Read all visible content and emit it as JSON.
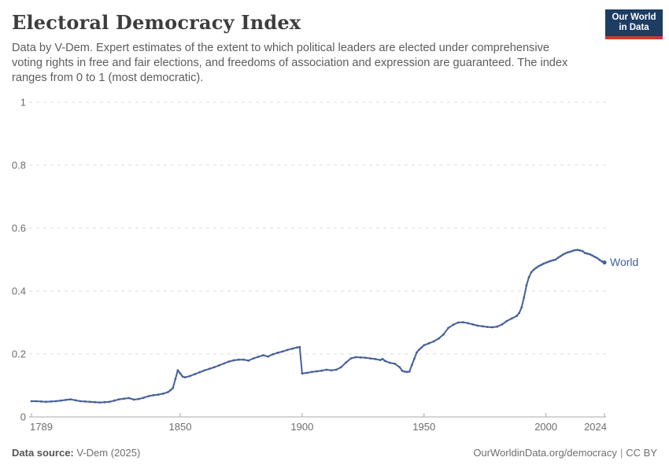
{
  "header": {
    "title": "Electoral Democracy Index",
    "subtitle": "Data by V-Dem. Expert estimates of the extent to which political leaders are elected under comprehensive voting rights in free and fair elections, and freedoms of association and expression are guaranteed. The index ranges from 0 to 1 (most democratic).",
    "logo": {
      "line1": "Our World",
      "line2": "in Data",
      "bg_color": "#1d3d63",
      "accent_color": "#cc3b34"
    }
  },
  "footer": {
    "source_label": "Data source:",
    "source_value": "V-Dem (2025)",
    "link": "OurWorldinData.org/democracy",
    "separator": "|",
    "license": "CC BY"
  },
  "chart_data": {
    "type": "line",
    "title": "Electoral Democracy Index",
    "xlabel": "",
    "ylabel": "",
    "xlim": [
      1789,
      2024
    ],
    "ylim": [
      0,
      1
    ],
    "x_ticks": [
      1789,
      1850,
      1900,
      1950,
      2000,
      2024
    ],
    "y_ticks": [
      0,
      0.2,
      0.4,
      0.6,
      0.8,
      1
    ],
    "grid": "horizontal-dashed",
    "legend_position": "end-of-line-label",
    "colors": {
      "line": "#44609b",
      "grid": "#dedede",
      "axis": "#a8a8a8",
      "tick_label": "#6d6d6d"
    },
    "series": [
      {
        "name": "World",
        "points": [
          [
            1789,
            0.05
          ],
          [
            1791,
            0.05
          ],
          [
            1793,
            0.049
          ],
          [
            1795,
            0.048
          ],
          [
            1797,
            0.049
          ],
          [
            1799,
            0.05
          ],
          [
            1801,
            0.052
          ],
          [
            1803,
            0.054
          ],
          [
            1805,
            0.056
          ],
          [
            1807,
            0.053
          ],
          [
            1809,
            0.05
          ],
          [
            1811,
            0.049
          ],
          [
            1813,
            0.048
          ],
          [
            1815,
            0.047
          ],
          [
            1817,
            0.046
          ],
          [
            1819,
            0.047
          ],
          [
            1821,
            0.048
          ],
          [
            1823,
            0.052
          ],
          [
            1825,
            0.056
          ],
          [
            1827,
            0.058
          ],
          [
            1829,
            0.06
          ],
          [
            1831,
            0.055
          ],
          [
            1833,
            0.057
          ],
          [
            1835,
            0.061
          ],
          [
            1837,
            0.066
          ],
          [
            1839,
            0.069
          ],
          [
            1841,
            0.071
          ],
          [
            1843,
            0.074
          ],
          [
            1845,
            0.079
          ],
          [
            1846,
            0.085
          ],
          [
            1847,
            0.092
          ],
          [
            1848,
            0.12
          ],
          [
            1849,
            0.148
          ],
          [
            1850,
            0.138
          ],
          [
            1851,
            0.128
          ],
          [
            1852,
            0.126
          ],
          [
            1854,
            0.13
          ],
          [
            1856,
            0.136
          ],
          [
            1858,
            0.142
          ],
          [
            1860,
            0.148
          ],
          [
            1862,
            0.153
          ],
          [
            1864,
            0.158
          ],
          [
            1866,
            0.164
          ],
          [
            1868,
            0.17
          ],
          [
            1870,
            0.176
          ],
          [
            1872,
            0.18
          ],
          [
            1874,
            0.182
          ],
          [
            1876,
            0.182
          ],
          [
            1878,
            0.179
          ],
          [
            1880,
            0.186
          ],
          [
            1882,
            0.191
          ],
          [
            1884,
            0.196
          ],
          [
            1886,
            0.192
          ],
          [
            1888,
            0.199
          ],
          [
            1890,
            0.204
          ],
          [
            1892,
            0.208
          ],
          [
            1894,
            0.213
          ],
          [
            1896,
            0.217
          ],
          [
            1898,
            0.221
          ],
          [
            1899,
            0.222
          ],
          [
            1900,
            0.138
          ],
          [
            1902,
            0.14
          ],
          [
            1904,
            0.143
          ],
          [
            1906,
            0.145
          ],
          [
            1908,
            0.147
          ],
          [
            1910,
            0.15
          ],
          [
            1912,
            0.148
          ],
          [
            1914,
            0.15
          ],
          [
            1916,
            0.158
          ],
          [
            1918,
            0.173
          ],
          [
            1920,
            0.186
          ],
          [
            1922,
            0.19
          ],
          [
            1924,
            0.189
          ],
          [
            1926,
            0.188
          ],
          [
            1928,
            0.186
          ],
          [
            1930,
            0.184
          ],
          [
            1932,
            0.181
          ],
          [
            1933,
            0.184
          ],
          [
            1934,
            0.178
          ],
          [
            1936,
            0.172
          ],
          [
            1938,
            0.169
          ],
          [
            1940,
            0.158
          ],
          [
            1941,
            0.147
          ],
          [
            1942,
            0.144
          ],
          [
            1943,
            0.143
          ],
          [
            1944,
            0.144
          ],
          [
            1945,
            0.165
          ],
          [
            1946,
            0.185
          ],
          [
            1947,
            0.205
          ],
          [
            1948,
            0.214
          ],
          [
            1949,
            0.221
          ],
          [
            1950,
            0.228
          ],
          [
            1952,
            0.234
          ],
          [
            1954,
            0.24
          ],
          [
            1956,
            0.249
          ],
          [
            1958,
            0.262
          ],
          [
            1960,
            0.283
          ],
          [
            1962,
            0.293
          ],
          [
            1964,
            0.3
          ],
          [
            1966,
            0.301
          ],
          [
            1968,
            0.298
          ],
          [
            1970,
            0.294
          ],
          [
            1972,
            0.29
          ],
          [
            1974,
            0.288
          ],
          [
            1976,
            0.286
          ],
          [
            1978,
            0.285
          ],
          [
            1980,
            0.287
          ],
          [
            1982,
            0.294
          ],
          [
            1984,
            0.305
          ],
          [
            1986,
            0.313
          ],
          [
            1988,
            0.321
          ],
          [
            1989,
            0.33
          ],
          [
            1990,
            0.348
          ],
          [
            1991,
            0.38
          ],
          [
            1992,
            0.418
          ],
          [
            1993,
            0.444
          ],
          [
            1994,
            0.46
          ],
          [
            1995,
            0.468
          ],
          [
            1996,
            0.474
          ],
          [
            1997,
            0.479
          ],
          [
            1998,
            0.483
          ],
          [
            1999,
            0.487
          ],
          [
            2000,
            0.49
          ],
          [
            2001,
            0.493
          ],
          [
            2002,
            0.496
          ],
          [
            2003,
            0.498
          ],
          [
            2004,
            0.5
          ],
          [
            2005,
            0.506
          ],
          [
            2006,
            0.511
          ],
          [
            2007,
            0.516
          ],
          [
            2008,
            0.52
          ],
          [
            2009,
            0.523
          ],
          [
            2010,
            0.525
          ],
          [
            2011,
            0.528
          ],
          [
            2012,
            0.53
          ],
          [
            2013,
            0.531
          ],
          [
            2014,
            0.529
          ],
          [
            2015,
            0.527
          ],
          [
            2016,
            0.521
          ],
          [
            2017,
            0.519
          ],
          [
            2018,
            0.517
          ],
          [
            2019,
            0.513
          ],
          [
            2020,
            0.509
          ],
          [
            2021,
            0.505
          ],
          [
            2022,
            0.499
          ],
          [
            2023,
            0.494
          ],
          [
            2024,
            0.491
          ]
        ]
      }
    ]
  }
}
